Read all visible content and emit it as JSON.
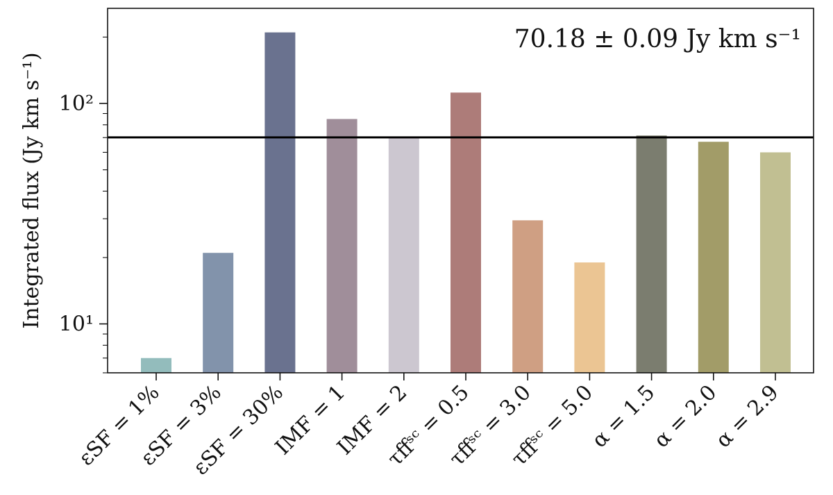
{
  "chart_data": {
    "type": "bar",
    "title": "",
    "xlabel": "",
    "ylabel": "Integrated flux (Jy km s⁻¹)",
    "yscale": "log",
    "ylim": [
      6.0,
      270
    ],
    "yticks": [
      {
        "value": 10,
        "label": "10¹"
      },
      {
        "value": 100,
        "label": "10²"
      }
    ],
    "categories": [
      "εSF = 1%",
      "εSF = 3%",
      "εSF = 30%",
      "IMF = 1",
      "IMF = 2",
      "τffˢᶜ = 0.5",
      "τffˢᶜ = 3.0",
      "τffˢᶜ = 5.0",
      "α = 1.5",
      "α = 2.0",
      "α = 2.9"
    ],
    "values": [
      7.0,
      21.0,
      210.0,
      85.0,
      70.0,
      112.0,
      29.5,
      19.0,
      71.5,
      67.0,
      60.0
    ],
    "colors": [
      "#93bcbc",
      "#8293ab",
      "#6a728f",
      "#a08e9a",
      "#ccc7d0",
      "#ad7c79",
      "#cf9f83",
      "#ebc593",
      "#7b7d6f",
      "#a29c68",
      "#c1bf92"
    ],
    "reference_line": {
      "value": 70.18,
      "color": "#000000"
    },
    "annotation": "70.18 ± 0.09 Jy km s⁻¹",
    "grid": false,
    "legend": "none"
  }
}
